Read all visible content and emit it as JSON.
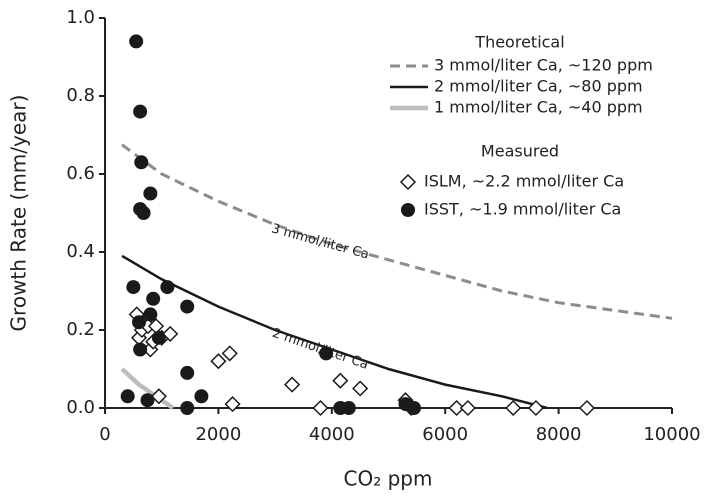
{
  "chart_data": {
    "type": "scatter",
    "xlabel": "CO₂ ppm",
    "ylabel": "Growth Rate (mm/year)",
    "xlim": [
      0,
      10000
    ],
    "xticks": [
      0,
      2000,
      4000,
      6000,
      8000,
      10000
    ],
    "ylim": [
      0,
      1.0
    ],
    "yticks": [
      {
        "value": 0,
        "label": "0.0"
      },
      0.2,
      0.4,
      0.6,
      0.8,
      {
        "value": 1.0,
        "label": "1.0"
      }
    ],
    "legend_titles": [
      "Theoretical",
      "Measured"
    ],
    "series": [
      {
        "name": "3 mmol/liter Ca, ~120 ppm",
        "kind": "line",
        "style": "dashed",
        "color": "#8c8c8c",
        "label": "3 mmol/liter Ca",
        "x": [
          300,
          1000,
          2000,
          3000,
          4000,
          5000,
          6000,
          7000,
          8000,
          9000,
          10000
        ],
        "values": [
          0.675,
          0.6,
          0.53,
          0.47,
          0.42,
          0.38,
          0.34,
          0.3,
          0.27,
          0.25,
          0.23
        ]
      },
      {
        "name": "2 mmol/liter Ca, ~80 ppm",
        "kind": "line",
        "style": "solid",
        "color": "#1a1a1a",
        "label": "2 mmol/liter Ca",
        "x": [
          300,
          1000,
          2000,
          3000,
          4000,
          5000,
          6000,
          7000,
          7800
        ],
        "values": [
          0.39,
          0.33,
          0.26,
          0.2,
          0.15,
          0.1,
          0.06,
          0.03,
          0.0
        ]
      },
      {
        "name": "1 mmol/liter Ca, ~40 ppm",
        "kind": "line",
        "style": "thick",
        "color": "#bdbdbd",
        "x": [
          300,
          600,
          900,
          1200
        ],
        "values": [
          0.1,
          0.06,
          0.03,
          0.0
        ]
      },
      {
        "name": "ISLM, ~2.2 mmol/liter Ca",
        "kind": "points",
        "marker": "diamond",
        "color": "#1a1a1a",
        "x": [
          560,
          600,
          650,
          700,
          760,
          800,
          850,
          900,
          950,
          1000,
          1150,
          2000,
          2200,
          2250,
          3300,
          3800,
          4150,
          4500,
          5300,
          5400,
          6200,
          6400,
          7200,
          7600,
          8500
        ],
        "values": [
          0.24,
          0.18,
          0.2,
          0.22,
          0.21,
          0.15,
          0.17,
          0.21,
          0.03,
          0.18,
          0.19,
          0.12,
          0.14,
          0.01,
          0.06,
          0.0,
          0.07,
          0.05,
          0.02,
          0.0,
          0.0,
          0.0,
          0.0,
          0.0,
          0.0
        ]
      },
      {
        "name": "ISST, ~1.9 mmol/liter Ca",
        "kind": "points",
        "marker": "circle",
        "color": "#1a1a1a",
        "x": [
          550,
          620,
          640,
          620,
          680,
          800,
          500,
          600,
          620,
          750,
          800,
          850,
          950,
          1100,
          1450,
          1450,
          1450,
          1700,
          400,
          3900,
          4150,
          4300,
          5300,
          5450
        ],
        "values": [
          0.94,
          0.76,
          0.63,
          0.51,
          0.5,
          0.55,
          0.31,
          0.22,
          0.15,
          0.02,
          0.24,
          0.28,
          0.18,
          0.31,
          0.26,
          0.09,
          0.0,
          0.03,
          0.03,
          0.14,
          0.0,
          0.0,
          0.01,
          0.0
        ]
      }
    ]
  }
}
